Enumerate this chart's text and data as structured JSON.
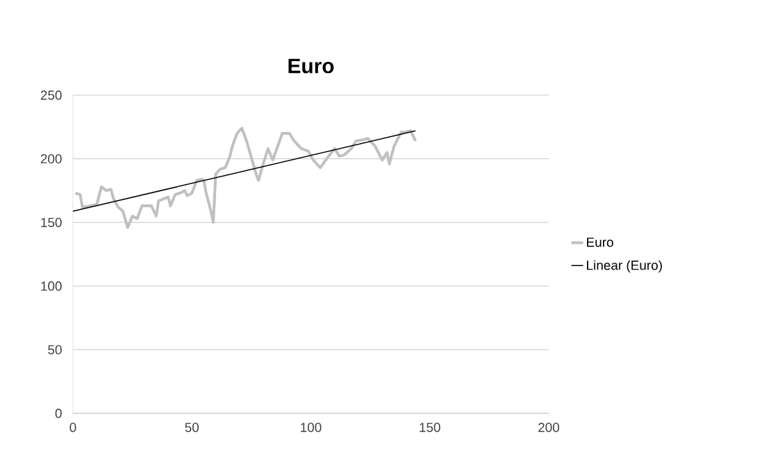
{
  "chart_data": {
    "type": "line",
    "title": "Euro",
    "series": [
      {
        "name": "Euro",
        "color": "#c0c0c0",
        "x": [
          1,
          3,
          4,
          7,
          10,
          12,
          14,
          16,
          17,
          19,
          21,
          23,
          25,
          27,
          29,
          33,
          35,
          36,
          40,
          41,
          43,
          45,
          47,
          48,
          50,
          52,
          54,
          55,
          56,
          58,
          59,
          60,
          62,
          64,
          66,
          67,
          69,
          71,
          73,
          75,
          77,
          78,
          80,
          82,
          84,
          88,
          91,
          93,
          96,
          99,
          101,
          104,
          107,
          110,
          112,
          114,
          117,
          119,
          122,
          124,
          127,
          130,
          132,
          133,
          135,
          138,
          140,
          142,
          144
        ],
        "values": [
          173,
          172,
          162,
          163,
          164,
          178,
          175,
          176,
          169,
          162,
          159,
          146,
          155,
          153,
          163,
          163,
          155,
          167,
          170,
          163,
          172,
          173,
          175,
          171,
          173,
          183,
          184,
          183,
          173,
          159,
          150,
          188,
          192,
          193,
          202,
          210,
          220,
          224,
          214,
          201,
          188,
          183,
          196,
          208,
          199,
          220,
          220,
          214,
          208,
          206,
          199,
          193,
          201,
          208,
          202,
          203,
          208,
          214,
          215,
          216,
          210,
          199,
          205,
          196,
          210,
          221,
          221,
          222,
          214
        ]
      },
      {
        "name": "Linear (Euro)",
        "color": "#000000",
        "x": [
          0,
          144
        ],
        "values": [
          158.8,
          222
        ]
      }
    ],
    "xlim": [
      0,
      200
    ],
    "xticks": [
      0,
      50,
      100,
      150,
      200
    ],
    "ylim": [
      0,
      250
    ],
    "yticks": [
      0,
      50,
      100,
      150,
      200,
      250
    ],
    "grid": "y",
    "legend": "right",
    "marker": "none",
    "line_style": "solid"
  }
}
